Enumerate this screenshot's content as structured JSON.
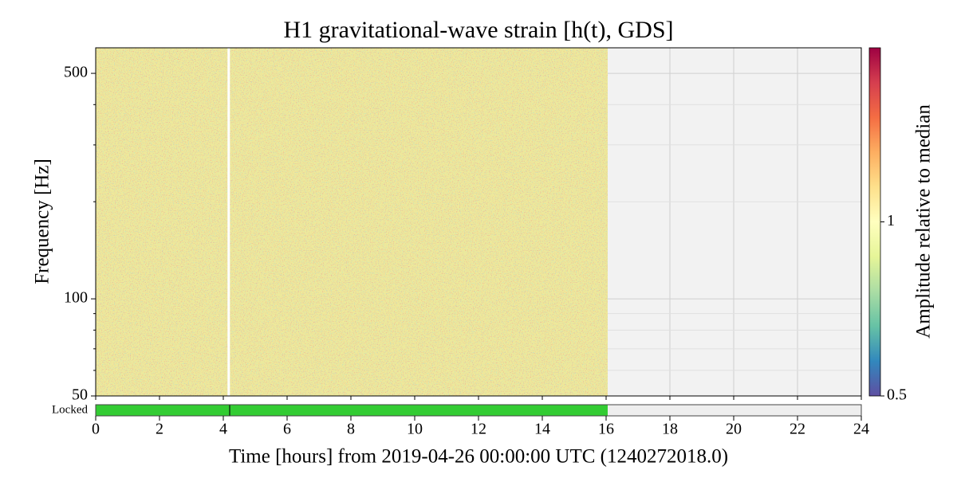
{
  "chart_data": {
    "type": "spectrogram",
    "title": "H1 gravitational-wave strain [h(t), GDS]",
    "x_label": "Time [hours] from 2019-04-26 00:00:00 UTC (1240272018.0)",
    "y_label": "Frequency [Hz]",
    "xlim": [
      0,
      24
    ],
    "xticks": [
      0,
      2,
      4,
      6,
      8,
      10,
      12,
      14,
      16,
      18,
      20,
      22,
      24
    ],
    "ylim": [
      50,
      600
    ],
    "y_scale": "log",
    "yticks": [
      50,
      100,
      500
    ],
    "yminorticks": [
      60,
      70,
      80,
      90,
      200,
      300,
      400
    ],
    "grid": true,
    "data_span": [
      0,
      16.05
    ],
    "gaps": [
      4.17
    ],
    "colorbar": {
      "label": "Amplitude relative to median",
      "lim": [
        0.5,
        2
      ],
      "ticks": [
        0.5,
        1
      ],
      "scale": "log",
      "colormap": [
        "#5e4fa2",
        "#3288bd",
        "#66c2a5",
        "#abdda4",
        "#e6f598",
        "#ffffbf",
        "#fee08b",
        "#fdae61",
        "#f46d43",
        "#d53e4f",
        "#9e0142"
      ]
    },
    "segments": {
      "label": "Locked",
      "color": "#33cc33",
      "spans": [
        [
          0,
          16.05
        ]
      ],
      "flags": [
        4.2
      ]
    }
  }
}
